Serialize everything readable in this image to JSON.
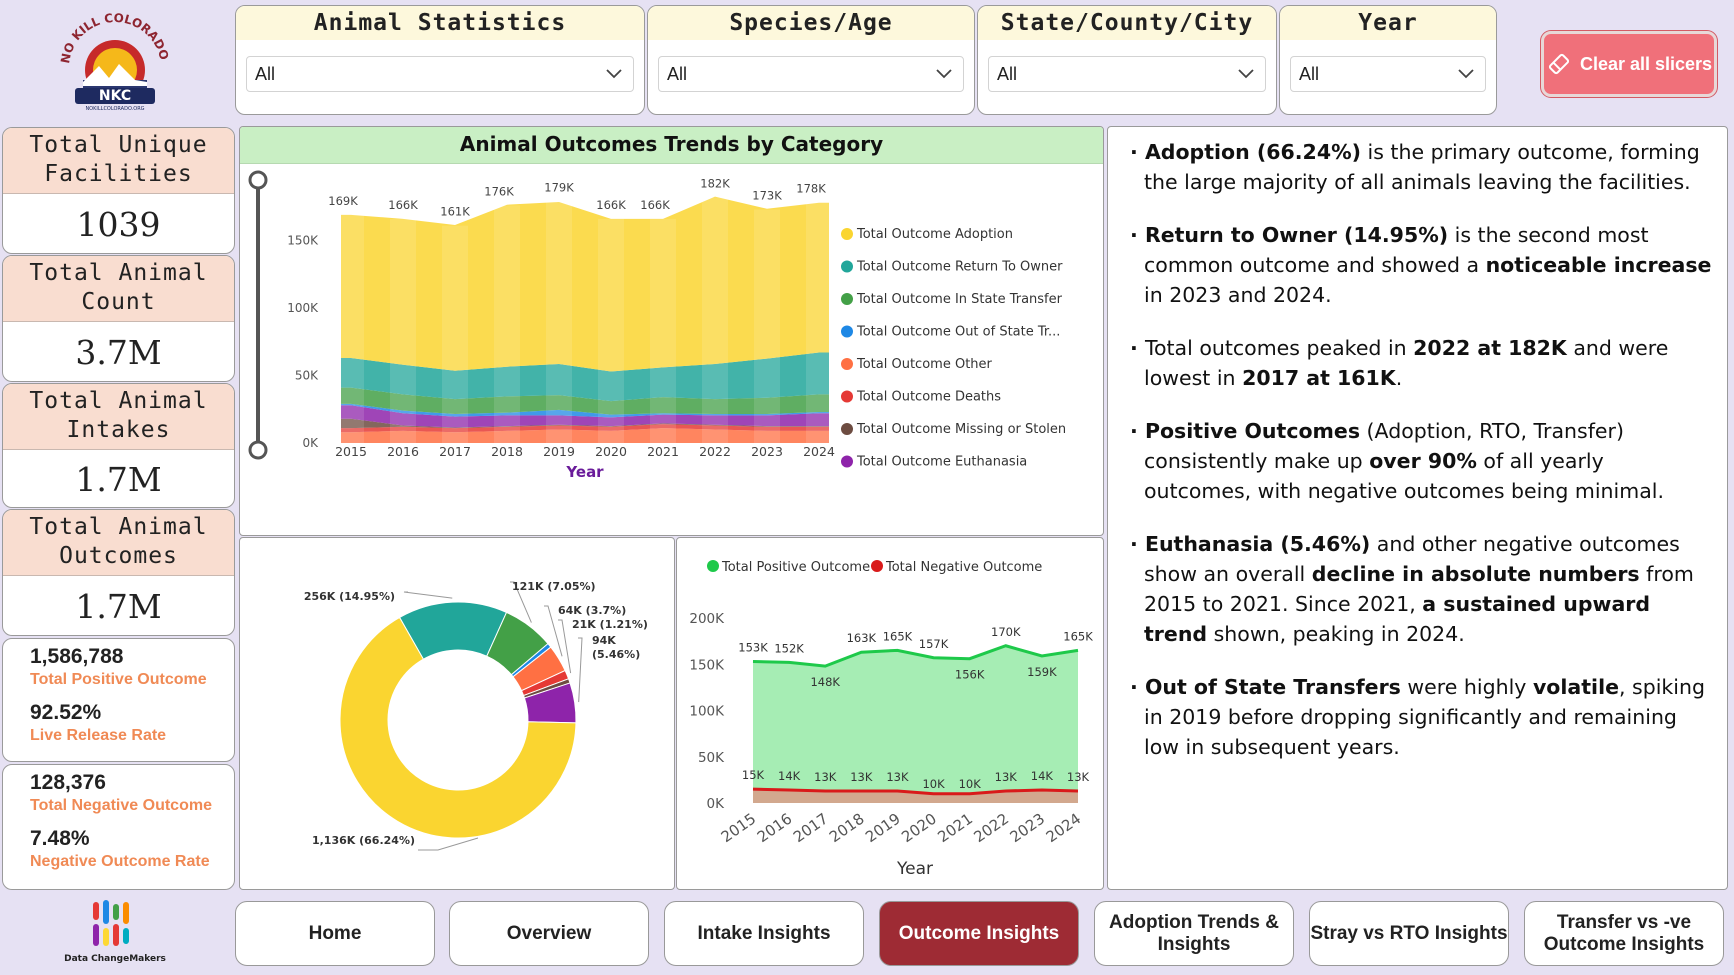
{
  "logo": {
    "text_arc": "NO KILL COLORADO",
    "initials": "NKC",
    "url_text": "NOKILLCOLORADO.ORG"
  },
  "slicers": [
    {
      "title": "Animal Statistics",
      "value": "All"
    },
    {
      "title": "Species/Age",
      "value": "All"
    },
    {
      "title": "State/County/City",
      "value": "All"
    },
    {
      "title": "Year",
      "value": "All"
    }
  ],
  "clear_button": {
    "label": "Clear all slicers"
  },
  "kpis": [
    {
      "title_line1": "Total Unique",
      "title_line2": "Facilities",
      "value": "1039"
    },
    {
      "title_line1": "Total Animal",
      "title_line2": "Count",
      "value": "3.7M"
    },
    {
      "title_line1": "Total Animal",
      "title_line2": "Intakes",
      "value": "1.7M"
    },
    {
      "title_line1": "Total Animal",
      "title_line2": "Outcomes",
      "value": "1.7M"
    }
  ],
  "positive_card": {
    "count": "1,586,788",
    "count_label": "Total Positive Outcome",
    "rate": "92.52%",
    "rate_label": "Live Release Rate"
  },
  "negative_card": {
    "count": "128,376",
    "count_label": "Total Negative Outcome",
    "rate": "7.48%",
    "rate_label": "Negative Outcome Rate"
  },
  "brand": {
    "name": "Data ChangeMakers"
  },
  "colors": {
    "adoption": "#fad530",
    "rto": "#21a69a",
    "in_state": "#43a047",
    "out_state": "#1e88e5",
    "other": "#ff7043",
    "deaths": "#e53935",
    "missing": "#6d4c41",
    "euthanasia": "#8e24aa",
    "positive": "#1ec94a",
    "negative": "#d91a1a"
  },
  "chart_data": [
    {
      "type": "area",
      "title": "Animal Outcomes Trends by Category",
      "xlabel": "Year",
      "ylabel": "",
      "x": [
        2015,
        2016,
        2017,
        2018,
        2019,
        2020,
        2021,
        2022,
        2023,
        2024
      ],
      "yticks": [
        "0K",
        "50K",
        "100K",
        "150K"
      ],
      "ylim": [
        0,
        200000
      ],
      "total_labels": [
        "169K",
        "166K",
        "161K",
        "176K",
        "179K",
        "166K",
        "166K",
        "182K",
        "173K",
        "178K"
      ],
      "totals": [
        169000,
        166000,
        161000,
        176000,
        179000,
        166000,
        166000,
        182000,
        173000,
        178000
      ],
      "series": [
        {
          "name": "Total Outcome Adoption",
          "key": "adoption",
          "values": [
            106000,
            108000,
            108000,
            120000,
            120000,
            113000,
            110000,
            124000,
            111000,
            111000
          ]
        },
        {
          "name": "Total Outcome Return To Owner",
          "key": "rto",
          "values": [
            22000,
            22000,
            21000,
            22000,
            23000,
            22000,
            22000,
            26000,
            29000,
            31000
          ]
        },
        {
          "name": "Total Outcome In State Transfer",
          "key": "in_state",
          "values": [
            12000,
            12000,
            11000,
            12000,
            11000,
            10000,
            12000,
            11000,
            12000,
            13000
          ]
        },
        {
          "name": "Total Outcome Out of State Tr...",
          "key": "out_state",
          "values": [
            1000,
            2000,
            2000,
            2000,
            4000,
            2000,
            1000,
            1000,
            1000,
            1000
          ]
        },
        {
          "name": "Total Outcome Other",
          "key": "other",
          "values": [
            8000,
            9000,
            8000,
            9000,
            10000,
            9000,
            11000,
            10000,
            9000,
            9000
          ]
        },
        {
          "name": "Total Outcome Deaths",
          "key": "deaths",
          "values": [
            3000,
            3000,
            3000,
            3000,
            3000,
            3000,
            3000,
            3000,
            3000,
            3000
          ]
        },
        {
          "name": "Total Outcome Missing or Stolen",
          "key": "missing",
          "values": [
            7000,
            1000,
            500,
            500,
            500,
            500,
            500,
            500,
            500,
            500
          ]
        },
        {
          "name": "Total Outcome Euthanasia",
          "key": "euthanasia",
          "values": [
            10000,
            9000,
            8000,
            8000,
            7000,
            6500,
            6500,
            7000,
            8000,
            9500
          ]
        }
      ]
    },
    {
      "type": "pie",
      "title": "",
      "slices": [
        {
          "label": "1,136K (66.24%)",
          "value": 66.24,
          "key": "adoption"
        },
        {
          "label": "256K (14.95%)",
          "value": 14.95,
          "key": "rto"
        },
        {
          "label": "121K (7.05%)",
          "value": 7.05,
          "key": "in_state"
        },
        {
          "label": "",
          "value": 0.6,
          "key": "out_state"
        },
        {
          "label": "64K (3.7%)",
          "value": 3.7,
          "key": "other"
        },
        {
          "label": "21K (1.21%)",
          "value": 1.21,
          "key": "deaths"
        },
        {
          "label": "",
          "value": 0.59,
          "key": "missing"
        },
        {
          "label_line1": "94K",
          "label_line2": "(5.46%)",
          "value": 5.46,
          "key": "euthanasia"
        }
      ]
    },
    {
      "type": "area",
      "title": "",
      "xlabel": "Year",
      "x": [
        "2015",
        "2016",
        "2017",
        "2018",
        "2019",
        "2020",
        "2021",
        "2022",
        "2023",
        "2024"
      ],
      "yticks": [
        "0K",
        "50K",
        "100K",
        "150K",
        "200K"
      ],
      "ylim": [
        0,
        200000
      ],
      "series": [
        {
          "name": "Total Positive Outcome",
          "key": "positive",
          "values": [
            153000,
            152000,
            148000,
            163000,
            165000,
            157000,
            156000,
            170000,
            159000,
            165000
          ],
          "labels": [
            "153K",
            "152K",
            "148K",
            "163K",
            "165K",
            "157K",
            "156K",
            "170K",
            "159K",
            "165K"
          ]
        },
        {
          "name": "Total Negative Outcome",
          "key": "negative",
          "values": [
            15000,
            14000,
            13000,
            13000,
            13000,
            10000,
            10000,
            13000,
            14000,
            13000
          ],
          "labels": [
            "15K",
            "14K",
            "13K",
            "13K",
            "13K",
            "10K",
            "10K",
            "13K",
            "14K",
            "13K"
          ]
        }
      ]
    }
  ],
  "insights": [
    {
      "parts": [
        [
          "b",
          "Adoption (66.24%)"
        ],
        [
          "t",
          " is the primary outcome, forming the large majority of all animals leaving the facilities."
        ]
      ]
    },
    {
      "parts": [
        [
          "b",
          "Return to Owner (14.95%)"
        ],
        [
          "t",
          " is the second most common outcome and showed a "
        ],
        [
          "b",
          "noticeable increase"
        ],
        [
          "t",
          " in 2023 and 2024."
        ]
      ]
    },
    {
      "parts": [
        [
          "t",
          "Total outcomes peaked in "
        ],
        [
          "b",
          "2022 at 182K"
        ],
        [
          "t",
          " and were lowest in "
        ],
        [
          "b",
          "2017 at 161K"
        ],
        [
          "t",
          "."
        ]
      ]
    },
    {
      "parts": [
        [
          "b",
          "Positive Outcomes"
        ],
        [
          "t",
          " (Adoption, RTO, Transfer) consistently make up "
        ],
        [
          "b",
          "over 90%"
        ],
        [
          "t",
          " of all yearly outcomes, with negative outcomes being minimal."
        ]
      ]
    },
    {
      "parts": [
        [
          "b",
          "Euthanasia (5.46%)"
        ],
        [
          "t",
          " and other negative outcomes show an overall "
        ],
        [
          "b",
          "decline in absolute numbers"
        ],
        [
          "t",
          " from 2015 to 2021. Since 2021, "
        ],
        [
          "b",
          "a sustained upward trend"
        ],
        [
          "t",
          " shown, peaking in 2024."
        ]
      ]
    },
    {
      "parts": [
        [
          "b",
          "Out of State Transfers"
        ],
        [
          "t",
          " were highly "
        ],
        [
          "b",
          "volatile"
        ],
        [
          "t",
          ", spiking in 2019 before dropping significantly and remaining low in subsequent years."
        ]
      ]
    }
  ],
  "nav": [
    {
      "label": "Home",
      "active": false
    },
    {
      "label": "Overview",
      "active": false
    },
    {
      "label": "Intake Insights",
      "active": false
    },
    {
      "label": "Outcome Insights",
      "active": true
    },
    {
      "label": "Adoption Trends & Insights",
      "active": false
    },
    {
      "label": "Stray vs RTO Insights",
      "active": false
    },
    {
      "label": "Transfer vs -ve Outcome Insights",
      "active": false
    }
  ]
}
